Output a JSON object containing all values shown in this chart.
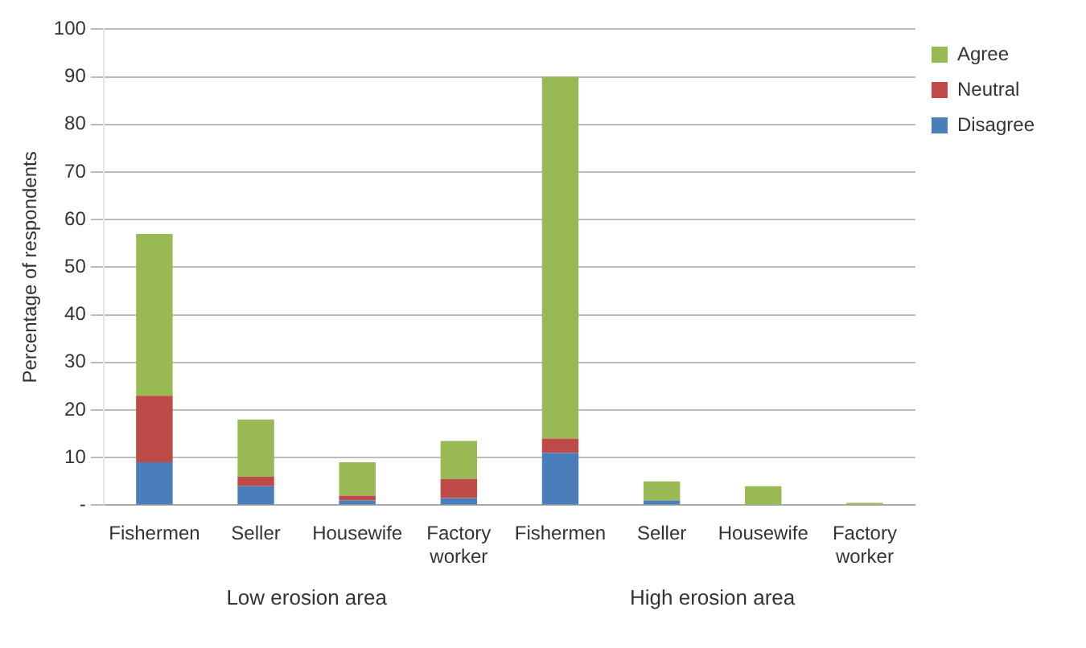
{
  "chart_data": {
    "type": "bar",
    "ylabel": "Percentage of respondents",
    "categories": [
      "Fishermen",
      "Seller",
      "Housewife",
      "Factory worker",
      "Fishermen",
      "Seller",
      "Housewife",
      "Factory worker"
    ],
    "series": [
      {
        "name": "Disagree",
        "color": "#4a7ebb",
        "values": [
          9,
          4,
          1,
          1.5,
          11,
          1,
          0,
          0
        ]
      },
      {
        "name": "Neutral",
        "color": "#be4b48",
        "values": [
          14,
          2,
          1,
          4,
          3,
          0,
          0,
          0
        ]
      },
      {
        "name": "Agree",
        "color": "#98b954",
        "values": [
          34,
          12,
          7,
          8,
          76,
          4,
          4,
          0.5
        ]
      }
    ],
    "stacked": true,
    "ylim": [
      0,
      100
    ],
    "yticks": [
      {
        "value": 0,
        "label": "-"
      },
      10,
      20,
      30,
      40,
      50,
      60,
      70,
      80,
      90,
      100
    ],
    "grid": "y",
    "legend": "top right",
    "annotations": [
      "Low erosion area",
      "High erosion area"
    ]
  }
}
